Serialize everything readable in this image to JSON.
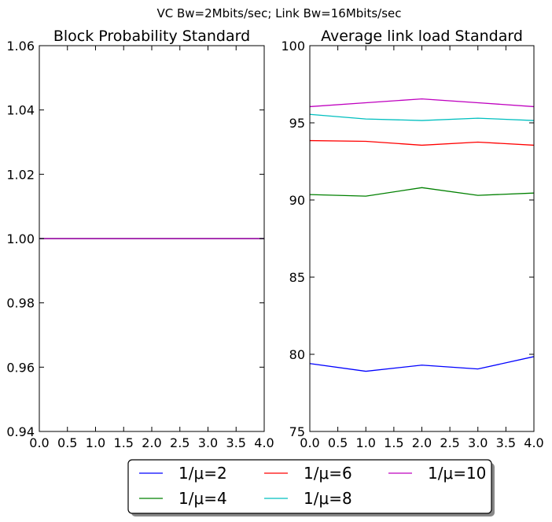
{
  "figure": {
    "suptitle": "VC Bw=2Mbits/sec; Link Bw=16Mbits/sec"
  },
  "chart_data": [
    {
      "type": "line",
      "title": "Block Probability Standard",
      "xlabel": "",
      "ylabel": "",
      "x": [
        0,
        1,
        2,
        3,
        4
      ],
      "xlim": [
        0,
        4
      ],
      "ylim": [
        0.94,
        1.06
      ],
      "xticks": [
        "0.0",
        "0.5",
        "1.0",
        "1.5",
        "2.0",
        "2.5",
        "3.0",
        "3.5",
        "4.0"
      ],
      "yticks": [
        "0.94",
        "0.96",
        "0.98",
        "1.00",
        "1.02",
        "1.04",
        "1.06"
      ],
      "grid": false,
      "series": [
        {
          "name": "1/μ=2",
          "color": "#0000ff",
          "values": [
            1.0,
            1.0,
            1.0,
            1.0,
            1.0
          ]
        },
        {
          "name": "1/μ=4",
          "color": "#008000",
          "values": [
            1.0,
            1.0,
            1.0,
            1.0,
            1.0
          ]
        },
        {
          "name": "1/μ=6",
          "color": "#ff0000",
          "values": [
            1.0,
            1.0,
            1.0,
            1.0,
            1.0
          ]
        },
        {
          "name": "1/μ=8",
          "color": "#00bfbf",
          "values": [
            1.0,
            1.0,
            1.0,
            1.0,
            1.0
          ]
        },
        {
          "name": "1/μ=10",
          "color": "#bf00bf",
          "values": [
            1.0,
            1.0,
            1.0,
            1.0,
            1.0
          ]
        }
      ]
    },
    {
      "type": "line",
      "title": "Average link load Standard",
      "xlabel": "",
      "ylabel": "",
      "x": [
        0,
        1,
        2,
        3,
        4
      ],
      "xlim": [
        0,
        4
      ],
      "ylim": [
        75,
        100
      ],
      "xticks": [
        "0.0",
        "0.5",
        "1.0",
        "1.5",
        "2.0",
        "2.5",
        "3.0",
        "3.5",
        "4.0"
      ],
      "yticks": [
        "75",
        "80",
        "85",
        "90",
        "95",
        "100"
      ],
      "grid": false,
      "series": [
        {
          "name": "1/μ=2",
          "color": "#0000ff",
          "values": [
            79.4,
            78.9,
            79.3,
            79.05,
            79.85
          ]
        },
        {
          "name": "1/μ=4",
          "color": "#008000",
          "values": [
            90.35,
            90.25,
            90.8,
            90.3,
            90.45
          ]
        },
        {
          "name": "1/μ=6",
          "color": "#ff0000",
          "values": [
            93.85,
            93.8,
            93.55,
            93.75,
            93.55
          ]
        },
        {
          "name": "1/μ=8",
          "color": "#00bfbf",
          "values": [
            95.55,
            95.25,
            95.15,
            95.3,
            95.15
          ]
        },
        {
          "name": "1/μ=10",
          "color": "#bf00bf",
          "values": [
            96.05,
            96.3,
            96.55,
            96.3,
            96.05
          ]
        }
      ]
    }
  ],
  "legend": {
    "placement": "bottom-center, 3 columns",
    "entries": [
      {
        "label": "1/μ=2",
        "color": "#0000ff"
      },
      {
        "label": "1/μ=4",
        "color": "#008000"
      },
      {
        "label": "1/μ=6",
        "color": "#ff0000"
      },
      {
        "label": "1/μ=8",
        "color": "#00bfbf"
      },
      {
        "label": "1/μ=10",
        "color": "#bf00bf"
      }
    ]
  }
}
